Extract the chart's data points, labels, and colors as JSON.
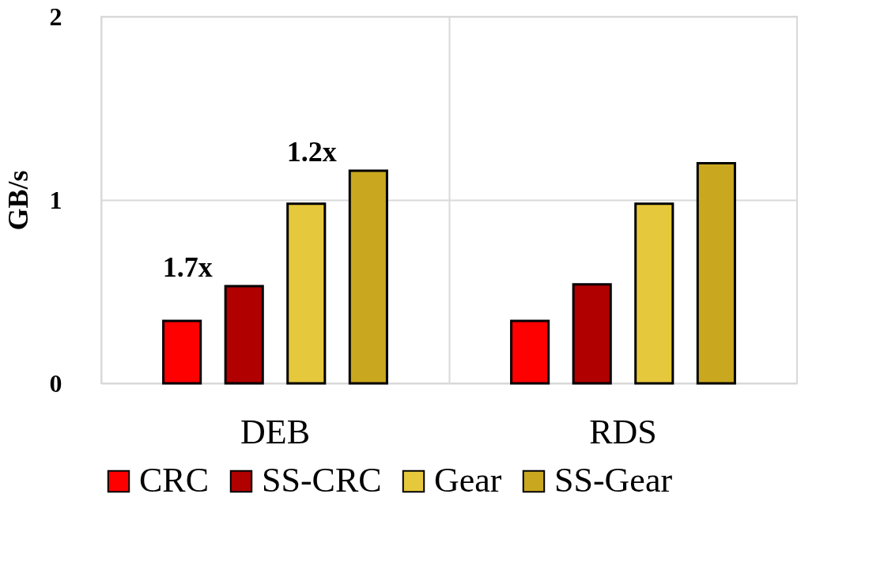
{
  "chart_data": {
    "type": "bar",
    "ylabel": "GB/s",
    "categories": [
      "DEB",
      "RDS"
    ],
    "series": [
      {
        "name": "CRC",
        "color": "#ff0000",
        "values": [
          0.34,
          0.34
        ]
      },
      {
        "name": "SS-CRC",
        "color": "#b00000",
        "values": [
          0.53,
          0.54
        ]
      },
      {
        "name": "Gear",
        "color": "#e6c83c",
        "values": [
          0.98,
          0.98
        ]
      },
      {
        "name": "SS-Gear",
        "color": "#c9a820",
        "values": [
          1.16,
          1.2
        ]
      }
    ],
    "ylim": [
      0,
      2
    ],
    "yticks": [
      0,
      1,
      2
    ],
    "grid": true,
    "legend": "bottom",
    "annotations": [
      "1.7x",
      "1.2x"
    ]
  }
}
